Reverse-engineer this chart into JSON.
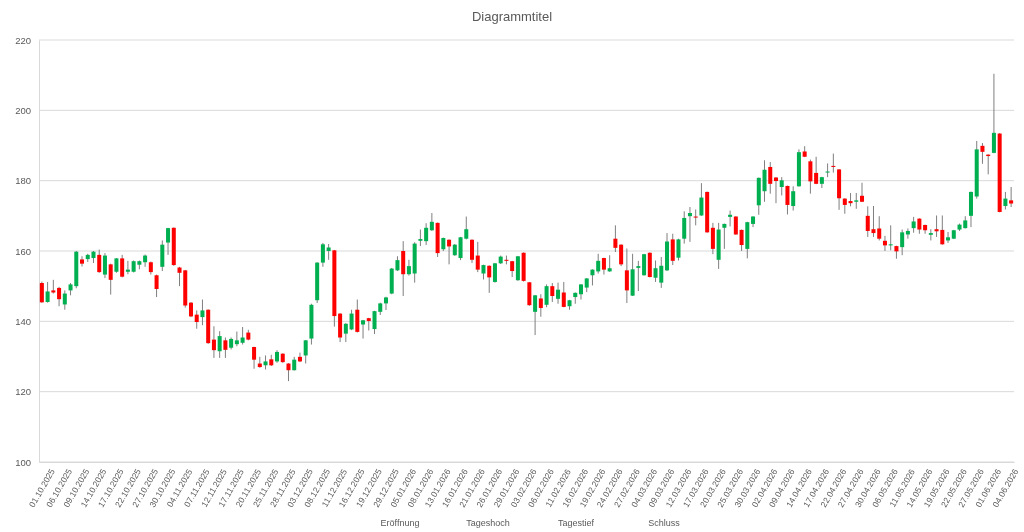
{
  "chart_data": {
    "type": "candlestick",
    "title": "Diagrammtitel",
    "categories": [
      "01.10.2025",
      null,
      null,
      "06.10.2025",
      null,
      null,
      "09.10.2025",
      null,
      null,
      "14.10.2025",
      null,
      null,
      "17.10.2025",
      null,
      null,
      "22.10.2025",
      null,
      null,
      "27.10.2025",
      null,
      null,
      "30.10.2025",
      null,
      null,
      "04.11.2025",
      null,
      null,
      "07.11.2025",
      null,
      null,
      "12.11.2025",
      null,
      null,
      "17.11.2025",
      null,
      null,
      "20.11.2025",
      null,
      null,
      "25.11.2025",
      null,
      null,
      "28.11.2025",
      null,
      null,
      "03.12.2025",
      null,
      null,
      "08.12.2025",
      null,
      null,
      "11.12.2025",
      null,
      null,
      "16.12.2025",
      null,
      null,
      "19.12.2025",
      null,
      null,
      "29.12.2025",
      null,
      null,
      "05.01.2026",
      null,
      null,
      "08.01.2026",
      null,
      null,
      "13.01.2026",
      null,
      null,
      "16.01.2026",
      null,
      null,
      "21.01.2026",
      null,
      null,
      "26.01.2026",
      null,
      null,
      "29.01.2026",
      null,
      null,
      "03.02.2026",
      null,
      null,
      "06.02.2026",
      null,
      null,
      "11.02.2026",
      null,
      null,
      "16.02.2026",
      null,
      null,
      "19.02.2026",
      null,
      null,
      "24.02.2026",
      null,
      null,
      "27.02.2026",
      null,
      null,
      "04.03.2026",
      null,
      null,
      "09.03.2026",
      null,
      null,
      "12.03.2026",
      null,
      null,
      "17.03.2026",
      null,
      null,
      "20.03.2026",
      null,
      null,
      "25.03.2026",
      null,
      null,
      "30.03.2026",
      null,
      null,
      "02.04.2026",
      null,
      null,
      "09.04.2026",
      null,
      null,
      "14.04.2026",
      null,
      null,
      "17.04.2026",
      null,
      null,
      "22.04.2026",
      null,
      null,
      "27.04.2026",
      null,
      null,
      "30.04.2026",
      null,
      null,
      "06.05.2026",
      null,
      null,
      "11.05.2026",
      null,
      null,
      "14.05.2026",
      null,
      null,
      "19.05.2026",
      null,
      null,
      "22.05.2026",
      null,
      null,
      "27.05.2026",
      null,
      null,
      "01.06.2026",
      null,
      null,
      "04.06.2026",
      null
    ],
    "ohlc": [
      [
        150.9,
        151.3,
        145.3,
        145.4
      ],
      [
        145.5,
        151.2,
        145.3,
        148.5
      ],
      [
        148.8,
        151.8,
        147.9,
        148.2
      ],
      [
        149.5,
        149.8,
        144.3,
        146.3
      ],
      [
        144.8,
        148.8,
        143.3,
        147.9
      ],
      [
        148.8,
        150.9,
        147.4,
        150.5
      ],
      [
        150.0,
        160.0,
        149.4,
        159.8
      ],
      [
        157.6,
        158.5,
        155.6,
        156.4
      ],
      [
        157.7,
        159.2,
        156.9,
        158.9
      ],
      [
        158.0,
        160.0,
        156.6,
        159.8
      ],
      [
        158.9,
        160.4,
        153.8,
        154.0
      ],
      [
        153.3,
        159.4,
        152.3,
        158.7
      ],
      [
        156.2,
        156.4,
        147.6,
        151.8
      ],
      [
        154.1,
        158.0,
        153.8,
        157.9
      ],
      [
        157.9,
        158.9,
        152.5,
        152.7
      ],
      [
        154.1,
        157.2,
        153.4,
        154.7
      ],
      [
        154.1,
        157.3,
        153.9,
        157.1
      ],
      [
        156.1,
        157.3,
        154.8,
        157.1
      ],
      [
        156.8,
        159.0,
        155.5,
        158.7
      ],
      [
        156.8,
        157.0,
        153.3,
        154.0
      ],
      [
        153.1,
        153.3,
        146.9,
        149.2
      ],
      [
        155.5,
        163.0,
        154.3,
        161.8
      ],
      [
        162.4,
        166.6,
        158.9,
        166.5
      ],
      [
        166.6,
        166.7,
        155.8,
        156.0
      ],
      [
        155.3,
        155.5,
        150.0,
        153.8
      ],
      [
        154.5,
        154.6,
        143.9,
        144.5
      ],
      [
        145.3,
        145.5,
        141.2,
        141.4
      ],
      [
        141.9,
        143.1,
        137.9,
        139.8
      ],
      [
        141.2,
        146.2,
        138.9,
        143.1
      ],
      [
        143.3,
        143.4,
        133.6,
        133.8
      ],
      [
        134.8,
        138.6,
        129.6,
        131.8
      ],
      [
        131.5,
        137.2,
        129.6,
        135.8
      ],
      [
        134.6,
        135.4,
        129.6,
        131.9
      ],
      [
        132.5,
        135.4,
        132.0,
        135.0
      ],
      [
        133.5,
        137.1,
        132.9,
        134.6
      ],
      [
        133.9,
        138.4,
        133.4,
        135.4
      ],
      [
        136.8,
        137.6,
        134.6,
        134.8
      ],
      [
        132.7,
        132.8,
        126.5,
        129.1
      ],
      [
        128.0,
        129.9,
        126.8,
        127.0
      ],
      [
        127.5,
        130.3,
        126.3,
        128.6
      ],
      [
        129.2,
        130.5,
        127.3,
        127.5
      ],
      [
        128.6,
        131.8,
        128.2,
        131.3
      ],
      [
        130.8,
        130.9,
        128.2,
        128.4
      ],
      [
        128.0,
        128.1,
        123.0,
        126.1
      ],
      [
        126.1,
        129.9,
        126.0,
        129.1
      ],
      [
        129.9,
        131.1,
        128.4,
        128.6
      ],
      [
        130.3,
        134.7,
        128.0,
        134.6
      ],
      [
        135.1,
        145.0,
        133.4,
        144.7
      ],
      [
        146.0,
        156.8,
        145.2,
        156.7
      ],
      [
        156.7,
        162.3,
        155.5,
        161.9
      ],
      [
        160.0,
        162.0,
        157.5,
        161.0
      ],
      [
        160.2,
        160.3,
        138.5,
        141.5
      ],
      [
        142.2,
        142.3,
        134.1,
        135.4
      ],
      [
        136.5,
        139.5,
        134.1,
        139.3
      ],
      [
        137.7,
        143.3,
        137.5,
        142.2
      ],
      [
        143.3,
        146.2,
        136.8,
        137.0
      ],
      [
        139.1,
        140.4,
        135.1,
        140.3
      ],
      [
        140.9,
        141.0,
        137.4,
        140.1
      ],
      [
        137.8,
        143.0,
        136.4,
        142.9
      ],
      [
        142.7,
        145.3,
        141.8,
        145.1
      ],
      [
        145.1,
        147.0,
        143.2,
        146.8
      ],
      [
        147.9,
        155.2,
        147.7,
        155.0
      ],
      [
        154.5,
        158.5,
        154.3,
        157.4
      ],
      [
        160.0,
        162.8,
        147.2,
        153.4
      ],
      [
        153.4,
        157.5,
        153.0,
        155.7
      ],
      [
        153.6,
        162.5,
        151.0,
        162.1
      ],
      [
        162.9,
        166.1,
        161.4,
        163.4
      ],
      [
        162.8,
        167.9,
        161.7,
        166.6
      ],
      [
        165.9,
        170.8,
        165.7,
        168.3
      ],
      [
        168.0,
        168.1,
        158.3,
        159.4
      ],
      [
        160.5,
        163.8,
        160.0,
        163.7
      ],
      [
        163.2,
        163.3,
        156.2,
        161.3
      ],
      [
        158.8,
        162.0,
        158.6,
        161.8
      ],
      [
        158.0,
        164.0,
        157.4,
        163.9
      ],
      [
        163.5,
        169.8,
        163.3,
        166.2
      ],
      [
        163.2,
        163.3,
        156.6,
        157.5
      ],
      [
        158.7,
        162.6,
        154.0,
        154.7
      ],
      [
        153.6,
        156.1,
        151.9,
        156.0
      ],
      [
        155.8,
        155.9,
        148.1,
        152.5
      ],
      [
        151.2,
        156.6,
        151.0,
        156.5
      ],
      [
        156.5,
        158.7,
        156.3,
        158.4
      ],
      [
        157.5,
        158.7,
        156.2,
        157.2
      ],
      [
        157.1,
        157.2,
        152.6,
        154.3
      ],
      [
        151.7,
        158.6,
        151.5,
        158.5
      ],
      [
        159.5,
        159.6,
        151.3,
        151.5
      ],
      [
        151.1,
        151.2,
        144.4,
        144.6
      ],
      [
        142.7,
        147.5,
        136.1,
        147.4
      ],
      [
        146.5,
        147.7,
        141.3,
        143.8
      ],
      [
        144.7,
        150.5,
        144.0,
        150.0
      ],
      [
        150.0,
        150.9,
        145.5,
        147.2
      ],
      [
        146.4,
        151.0,
        145.0,
        149.0
      ],
      [
        148.2,
        151.2,
        144.0,
        144.1
      ],
      [
        144.3,
        146.1,
        143.3,
        146.0
      ],
      [
        146.9,
        148.2,
        145.0,
        148.1
      ],
      [
        147.7,
        150.6,
        146.2,
        150.5
      ],
      [
        149.6,
        152.3,
        148.3,
        152.2
      ],
      [
        153.1,
        154.8,
        150.2,
        154.7
      ],
      [
        154.2,
        159.2,
        153.6,
        157.2
      ],
      [
        158.0,
        158.1,
        153.3,
        154.7
      ],
      [
        154.2,
        158.8,
        154.1,
        155.1
      ],
      [
        163.5,
        167.3,
        159.7,
        160.9
      ],
      [
        161.8,
        161.9,
        155.7,
        156.2
      ],
      [
        154.5,
        160.7,
        145.2,
        148.8
      ],
      [
        147.3,
        159.2,
        147.2,
        154.8
      ],
      [
        155.2,
        157.2,
        148.6,
        155.7
      ],
      [
        153.1,
        159.2,
        153.0,
        159.1
      ],
      [
        159.5,
        159.6,
        152.5,
        152.6
      ],
      [
        152.4,
        157.3,
        151.2,
        155.1
      ],
      [
        151.0,
        158.3,
        149.5,
        155.8
      ],
      [
        154.5,
        165.1,
        154.3,
        162.7
      ],
      [
        163.3,
        164.9,
        156.0,
        157.2
      ],
      [
        158.1,
        163.5,
        157.3,
        163.3
      ],
      [
        163.5,
        171.3,
        162.1,
        169.4
      ],
      [
        169.9,
        172.5,
        162.6,
        170.8
      ],
      [
        169.8,
        171.8,
        167.3,
        169.5
      ],
      [
        170.1,
        179.3,
        170.0,
        175.2
      ],
      [
        176.8,
        176.9,
        165.2,
        165.3
      ],
      [
        166.6,
        168.0,
        159.1,
        160.6
      ],
      [
        157.5,
        168.0,
        154.9,
        166.1
      ],
      [
        166.6,
        167.8,
        160.6,
        167.7
      ],
      [
        169.7,
        171.5,
        167.0,
        170.3
      ],
      [
        169.8,
        169.9,
        164.6,
        164.7
      ],
      [
        166.0,
        166.1,
        160.0,
        161.7
      ],
      [
        160.6,
        168.3,
        157.9,
        168.2
      ],
      [
        167.7,
        169.9,
        166.8,
        169.8
      ],
      [
        173.0,
        180.9,
        170.3,
        180.8
      ],
      [
        177.0,
        185.8,
        174.0,
        183.1
      ],
      [
        183.9,
        185.3,
        176.3,
        179.1
      ],
      [
        180.9,
        181.0,
        173.6,
        179.9
      ],
      [
        178.2,
        181.0,
        175.8,
        180.1
      ],
      [
        178.5,
        178.6,
        170.4,
        173.1
      ],
      [
        172.8,
        178.4,
        171.5,
        177.0
      ],
      [
        178.4,
        188.9,
        178.3,
        188.1
      ],
      [
        188.3,
        189.8,
        186.7,
        186.8
      ],
      [
        185.5,
        186.0,
        176.3,
        179.8
      ],
      [
        182.2,
        186.8,
        179.0,
        179.1
      ],
      [
        179.1,
        181.1,
        177.9,
        181.0
      ],
      [
        182.3,
        184.9,
        181.0,
        182.6
      ],
      [
        184.2,
        187.7,
        182.3,
        183.9
      ],
      [
        183.2,
        183.3,
        171.7,
        175.0
      ],
      [
        174.9,
        175.0,
        170.6,
        173.1
      ],
      [
        174.2,
        176.5,
        172.7,
        173.6
      ],
      [
        174.0,
        176.5,
        172.0,
        174.4
      ],
      [
        175.7,
        179.4,
        173.9,
        174.0
      ],
      [
        170.0,
        172.7,
        164.0,
        165.7
      ],
      [
        166.2,
        172.8,
        164.0,
        165.1
      ],
      [
        166.4,
        169.9,
        163.0,
        163.5
      ],
      [
        162.9,
        164.3,
        160.0,
        161.6
      ],
      [
        161.6,
        167.3,
        160.2,
        161.9
      ],
      [
        161.4,
        161.5,
        157.8,
        159.9
      ],
      [
        161.1,
        166.1,
        158.8,
        165.3
      ],
      [
        164.7,
        166.4,
        163.5,
        165.7
      ],
      [
        166.5,
        169.7,
        165.2,
        168.4
      ],
      [
        169.2,
        169.3,
        164.9,
        166.1
      ],
      [
        167.4,
        167.5,
        164.9,
        165.9
      ],
      [
        164.6,
        166.2,
        163.0,
        165.1
      ],
      [
        166.2,
        170.1,
        164.0,
        165.6
      ],
      [
        166.0,
        170.1,
        161.8,
        161.9
      ],
      [
        163.0,
        165.4,
        162.3,
        163.9
      ],
      [
        163.5,
        166.0,
        163.4,
        165.9
      ],
      [
        166.1,
        167.8,
        165.7,
        167.5
      ],
      [
        166.5,
        169.9,
        166.4,
        168.7
      ],
      [
        170.0,
        176.9,
        166.8,
        176.8
      ],
      [
        175.5,
        191.3,
        174.9,
        188.9
      ],
      [
        189.9,
        190.7,
        184.8,
        188.2
      ],
      [
        187.4,
        187.5,
        181.8,
        187.0
      ],
      [
        187.9,
        210.4,
        187.8,
        193.6
      ],
      [
        193.4,
        193.5,
        171.0,
        171.1
      ],
      [
        172.8,
        176.8,
        171.8,
        174.9
      ],
      [
        174.4,
        178.2,
        172.5,
        173.5
      ]
    ],
    "colors": [
      "#ff0000",
      "#00b050",
      "#ff0000",
      "#ff0000",
      "#00b050",
      "#00b050",
      "#00b050",
      "#ff0000",
      "#00b050",
      "#00b050",
      "#ff0000",
      "#00b050",
      "#ff0000",
      "#00b050",
      "#ff0000",
      "#00b050",
      "#00b050",
      "#00b050",
      "#00b050",
      "#ff0000",
      "#ff0000",
      "#00b050",
      "#00b050",
      "#ff0000",
      "#ff0000",
      "#ff0000",
      "#ff0000",
      "#ff0000",
      "#00b050",
      "#ff0000",
      "#ff0000",
      "#00b050",
      "#ff0000",
      "#00b050",
      "#00b050",
      "#00b050",
      "#ff0000",
      "#ff0000",
      "#ff0000",
      "#00b050",
      "#ff0000",
      "#00b050",
      "#ff0000",
      "#ff0000",
      "#00b050",
      "#ff0000",
      "#00b050",
      "#00b050",
      "#00b050",
      "#00b050",
      "#00b050",
      "#ff0000",
      "#ff0000",
      "#00b050",
      "#00b050",
      "#ff0000",
      "#00b050",
      "#ff0000",
      "#00b050",
      "#00b050",
      "#00b050",
      "#00b050",
      "#00b050",
      "#ff0000",
      "#00b050",
      "#00b050",
      "#00b050",
      "#00b050",
      "#00b050",
      "#ff0000",
      "#00b050",
      "#ff0000",
      "#00b050",
      "#00b050",
      "#00b050",
      "#ff0000",
      "#ff0000",
      "#00b050",
      "#ff0000",
      "#00b050",
      "#00b050",
      "#ff0000",
      "#ff0000",
      "#00b050",
      "#ff0000",
      "#ff0000",
      "#00b050",
      "#ff0000",
      "#00b050",
      "#ff0000",
      "#00b050",
      "#ff0000",
      "#00b050",
      "#00b050",
      "#00b050",
      "#00b050",
      "#00b050",
      "#00b050",
      "#ff0000",
      "#00b050",
      "#ff0000",
      "#ff0000",
      "#ff0000",
      "#00b050",
      "#00b050",
      "#00b050",
      "#ff0000",
      "#00b050",
      "#00b050",
      "#00b050",
      "#ff0000",
      "#00b050",
      "#00b050",
      "#00b050",
      "#ff0000",
      "#00b050",
      "#ff0000",
      "#ff0000",
      "#00b050",
      "#00b050",
      "#00b050",
      "#ff0000",
      "#ff0000",
      "#00b050",
      "#00b050",
      "#00b050",
      "#00b050",
      "#ff0000",
      "#ff0000",
      "#00b050",
      "#ff0000",
      "#00b050",
      "#00b050",
      "#ff0000",
      "#ff0000",
      "#ff0000",
      "#00b050",
      "#00b050",
      "#ff0000",
      "#ff0000",
      "#ff0000",
      "#ff0000",
      "#00b050",
      "#ff0000",
      "#ff0000",
      "#ff0000",
      "#ff0000",
      "#ff0000",
      "#00b050",
      "#ff0000",
      "#00b050",
      "#00b050",
      "#00b050",
      "#ff0000",
      "#ff0000",
      "#00b050",
      "#ff0000",
      "#ff0000",
      "#00b050",
      "#00b050",
      "#00b050",
      "#00b050",
      "#00b050",
      "#00b050",
      "#ff0000",
      "#ff0000",
      "#00b050",
      "#ff0000",
      "#00b050",
      "#ff0000"
    ],
    "ylim": [
      100,
      220
    ],
    "yticks": [
      100,
      120,
      140,
      160,
      180,
      200,
      220
    ],
    "grid": "y",
    "annotations": [
      "Eröffnung",
      "Tageshoch",
      "Tagestief",
      "Schluss"
    ]
  }
}
